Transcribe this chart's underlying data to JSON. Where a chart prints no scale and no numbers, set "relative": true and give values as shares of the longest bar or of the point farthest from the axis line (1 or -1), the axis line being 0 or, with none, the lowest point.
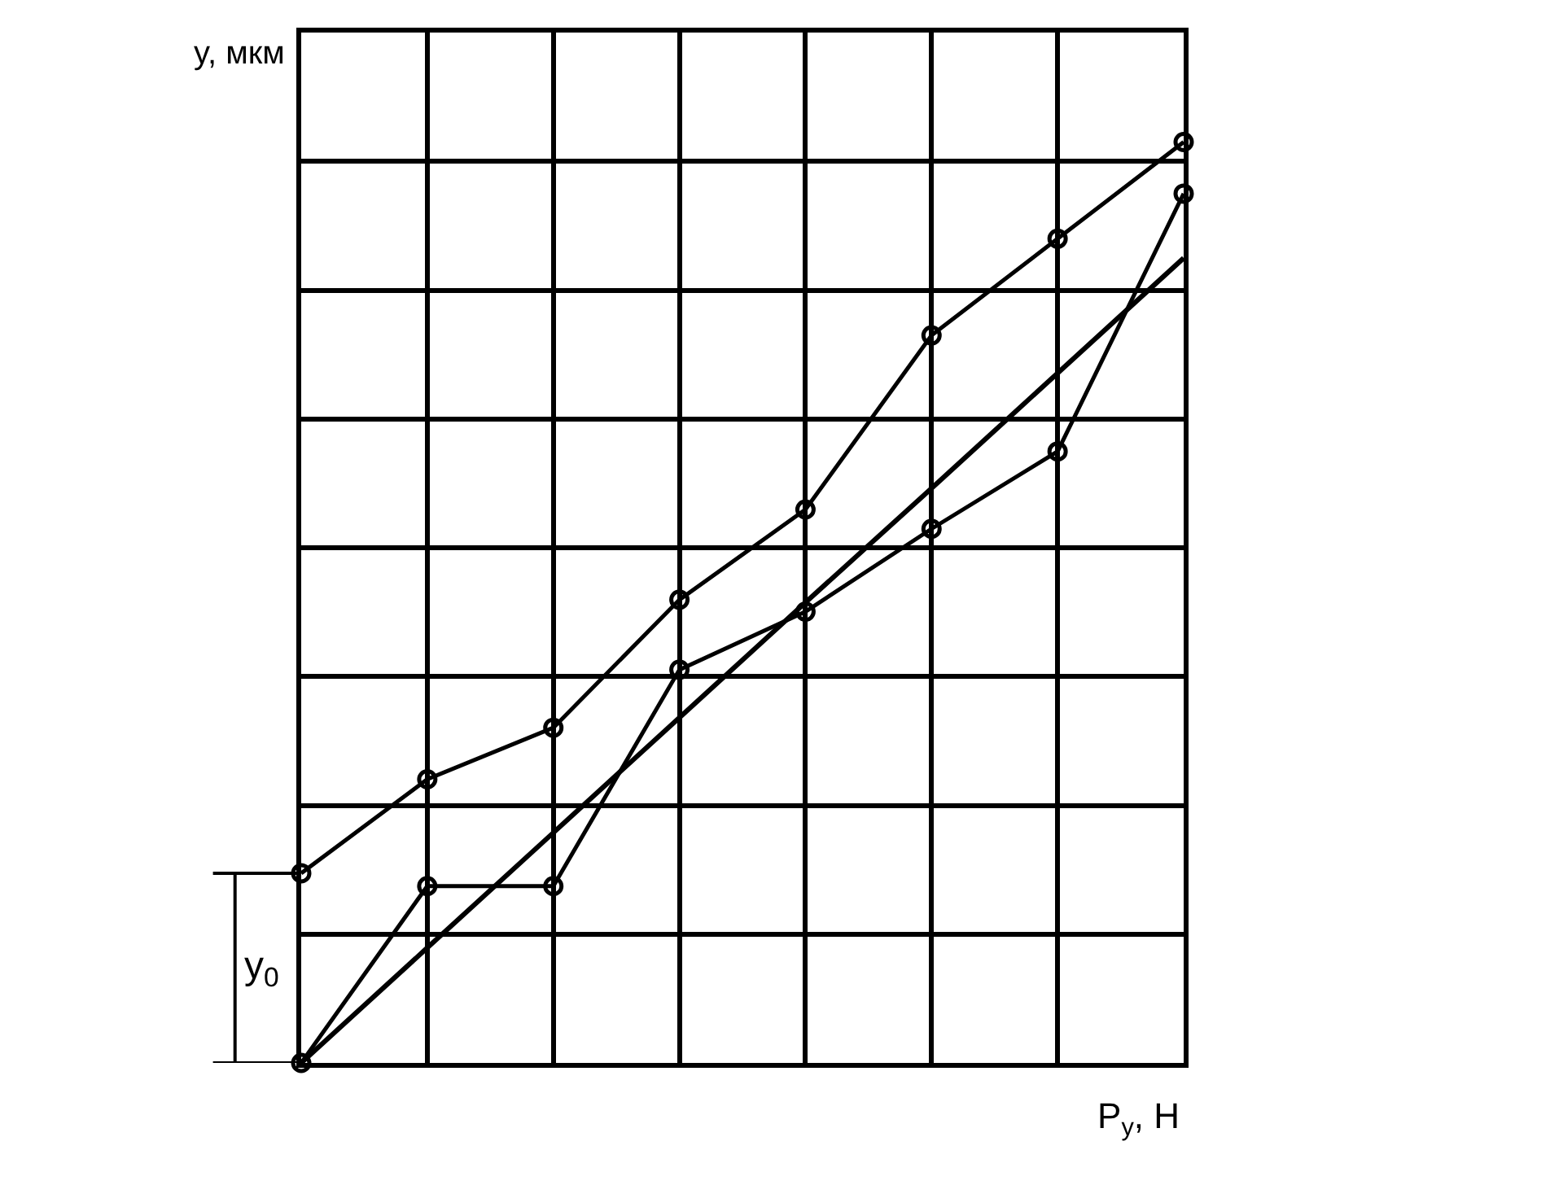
{
  "chart_data": {
    "type": "line",
    "relative": true,
    "xlabel": "P$_{у}$, Н",
    "ylabel": "y, мкм",
    "categories": [
      null,
      null,
      null,
      null,
      null,
      null,
      null,
      null
    ],
    "series": [
      {
        "color": "#000000",
        "marker": "circle",
        "values": [
          0.206,
          0.308,
          0.364,
          0.503,
          0.601,
          0.79,
          0.895,
          1.0
        ]
      },
      {
        "color": "#000000",
        "marker": "circle",
        "values": [
          0,
          0.192,
          0.192,
          0.427,
          0.49,
          0.58,
          0.664,
          0.944
        ]
      },
      {
        "color": "#000000",
        "marker": "none",
        "values": [
          0,
          0.125,
          0.25,
          0.375,
          0.5,
          0.624,
          0.749,
          0.874
        ]
      }
    ],
    "annotations": [
      "y$_{0}$"
    ],
    "grid": true,
    "line_style": "solid"
  }
}
